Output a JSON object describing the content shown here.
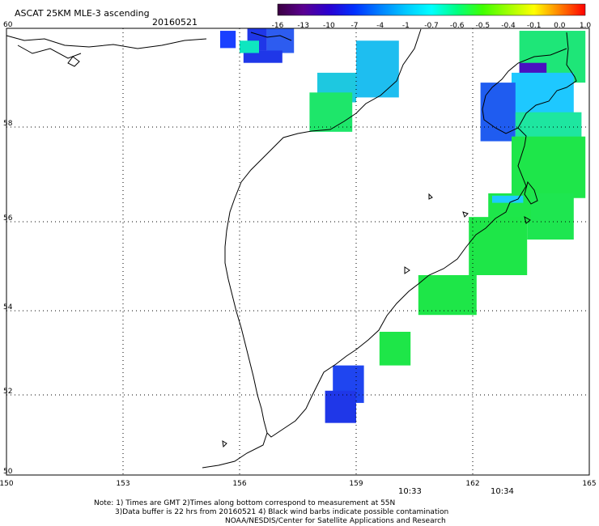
{
  "header": {
    "title": "ASCAT 25KM MLE-3 ascending",
    "date": "20160521"
  },
  "colorbar": {
    "labels": [
      "-16",
      "-13",
      "-10",
      "-7",
      "-4",
      "-1",
      "-0.7",
      "-0.6",
      "-0.5",
      "-0.4",
      "-0.1",
      "0.0",
      "1.0"
    ],
    "colors": [
      "#3a0040",
      "#5a0090",
      "#2a00d0",
      "#0030ff",
      "#0080ff",
      "#00c8ff",
      "#00ffff",
      "#00ff80",
      "#40ff00",
      "#a0ff00",
      "#ffff00",
      "#ff8000",
      "#ff0000"
    ]
  },
  "map": {
    "lon_labels": [
      "150",
      "153",
      "156",
      "159",
      "162",
      "165"
    ],
    "lat_labels": [
      "60",
      "58",
      "56",
      "54",
      "52",
      "50"
    ],
    "lon_range": [
      150,
      165
    ],
    "lat_range": [
      50,
      60
    ],
    "times": [
      "10:33",
      "10:34"
    ],
    "time_color": "#d02000",
    "cells": [
      {
        "lon": [
          156.2,
          156.7
        ],
        "lat": [
          59.55,
          60.0
        ],
        "color": "#1f37e8"
      },
      {
        "lon": [
          156.7,
          157.4
        ],
        "lat": [
          59.5,
          60.0
        ],
        "color": "#2d5cf0"
      },
      {
        "lon": [
          155.5,
          155.9
        ],
        "lat": [
          59.6,
          59.95
        ],
        "color": "#1a40ff"
      },
      {
        "lon": [
          156.1,
          157.1
        ],
        "lat": [
          59.3,
          59.55
        ],
        "color": "#1f37e8"
      },
      {
        "lon": [
          156.0,
          156.5
        ],
        "lat": [
          59.5,
          59.75
        ],
        "color": "#0fe6c0"
      },
      {
        "lon": [
          159.0,
          160.1
        ],
        "lat": [
          58.6,
          59.75
        ],
        "color": "#1ebef0"
      },
      {
        "lon": [
          158.0,
          159.0
        ],
        "lat": [
          58.5,
          59.1
        ],
        "color": "#1ec8e0"
      },
      {
        "lon": [
          157.8,
          158.9
        ],
        "lat": [
          57.9,
          58.7
        ],
        "color": "#1ee66a"
      },
      {
        "lon": [
          163.2,
          164.9
        ],
        "lat": [
          58.9,
          59.95
        ],
        "color": "#1ee678"
      },
      {
        "lon": [
          163.2,
          163.9
        ],
        "lat": [
          59.0,
          59.3
        ],
        "color": "#4a10c0"
      },
      {
        "lon": [
          163.0,
          164.6
        ],
        "lat": [
          58.0,
          59.1
        ],
        "color": "#1ec8ff"
      },
      {
        "lon": [
          162.2,
          163.1
        ],
        "lat": [
          57.7,
          58.9
        ],
        "color": "#1f5cf0"
      },
      {
        "lon": [
          163.1,
          164.8
        ],
        "lat": [
          57.7,
          58.3
        ],
        "color": "#1ee6a0"
      },
      {
        "lon": [
          163.0,
          164.9
        ],
        "lat": [
          56.5,
          57.8
        ],
        "color": "#1ee64a"
      },
      {
        "lon": [
          163.4,
          164.6
        ],
        "lat": [
          55.6,
          56.6
        ],
        "color": "#1ee650"
      },
      {
        "lon": [
          162.4,
          163.5
        ],
        "lat": [
          56.0,
          56.6
        ],
        "color": "#1ee64a"
      },
      {
        "lon": [
          162.5,
          163.3
        ],
        "lat": [
          56.4,
          56.55
        ],
        "color": "#1ecbff"
      },
      {
        "lon": [
          161.9,
          163.4
        ],
        "lat": [
          54.8,
          56.1
        ],
        "color": "#1ee648"
      },
      {
        "lon": [
          160.6,
          162.1
        ],
        "lat": [
          53.9,
          54.8
        ],
        "color": "#1ee648"
      },
      {
        "lon": [
          159.6,
          160.4
        ],
        "lat": [
          52.7,
          53.5
        ],
        "color": "#1ee648"
      },
      {
        "lon": [
          158.4,
          159.2
        ],
        "lat": [
          51.8,
          52.7
        ],
        "color": "#1f45f0"
      },
      {
        "lon": [
          158.2,
          159.0
        ],
        "lat": [
          51.3,
          52.1
        ],
        "color": "#1f37e8"
      }
    ]
  },
  "notes": {
    "line1": "Note: 1) Times are GMT 2)Times along bottom correspond to measurement at 55N",
    "line2": "3)Data buffer is 22 hrs from 20160521 4) Black wind barbs indicate possible contamination",
    "line3": "NOAA/NESDIS/Center for Satellite Applications and Research"
  }
}
